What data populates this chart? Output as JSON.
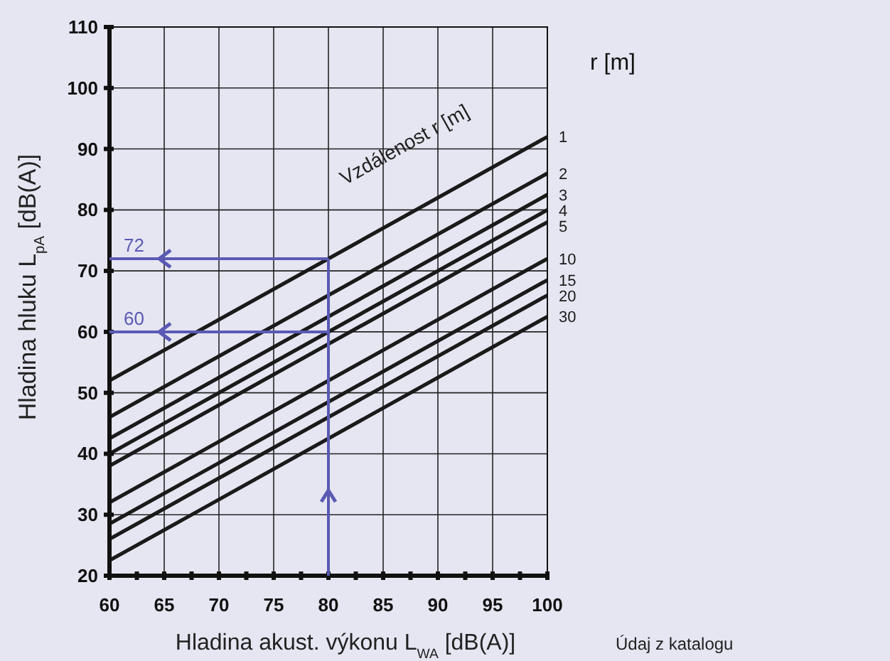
{
  "chart_data": {
    "type": "line",
    "xlabel": "Hladina akust. výkonu L$_{WA}$ [dB(A)]",
    "ylabel": "Hladina hluku  L$_{pA}$  [dB(A)]",
    "legend_title": "r [m]",
    "x": [
      60,
      100
    ],
    "series": [
      {
        "name": "1",
        "color": "#1a1a1a",
        "values": [
          52,
          92
        ]
      },
      {
        "name": "2",
        "color": "#1a1a1a",
        "values": [
          46,
          86
        ]
      },
      {
        "name": "3",
        "color": "#1a1a1a",
        "values": [
          42.5,
          82.5
        ]
      },
      {
        "name": "4",
        "color": "#1a1a1a",
        "values": [
          40,
          80
        ]
      },
      {
        "name": "5",
        "color": "#1a1a1a",
        "values": [
          38,
          78
        ]
      },
      {
        "name": "10",
        "color": "#1a1a1a",
        "values": [
          32,
          72
        ]
      },
      {
        "name": "15",
        "color": "#1a1a1a",
        "values": [
          28.5,
          68.5
        ]
      },
      {
        "name": "20",
        "color": "#1a1a1a",
        "values": [
          26,
          66
        ]
      },
      {
        "name": "30",
        "color": "#1a1a1a",
        "values": [
          22.5,
          62.5
        ]
      }
    ],
    "xlim": [
      60,
      100
    ],
    "ylim": [
      20,
      110
    ],
    "xticks": [
      60,
      {
        "value": 62.5,
        "label": null
      },
      65,
      {
        "value": 67.5,
        "label": null
      },
      70,
      {
        "value": 72.5,
        "label": null
      },
      75,
      {
        "value": 77.5,
        "label": null
      },
      80,
      {
        "value": 82.5,
        "label": null
      },
      85,
      {
        "value": 87.5,
        "label": null
      },
      90,
      {
        "value": 92.5,
        "label": null
      },
      95,
      {
        "value": 97.5,
        "label": null
      },
      100
    ],
    "yticks": [
      20,
      30,
      40,
      50,
      60,
      70,
      80,
      90,
      100,
      110
    ],
    "grid": true,
    "legend": "right",
    "marker": "none",
    "line_style": "solid",
    "annotations": [
      "Vzdálenost r [m]",
      {
        "text": "72",
        "x": 80,
        "y": 72
      },
      {
        "text": "60",
        "x": 80,
        "y": 60
      },
      "Údaj z katalogu"
    ]
  }
}
